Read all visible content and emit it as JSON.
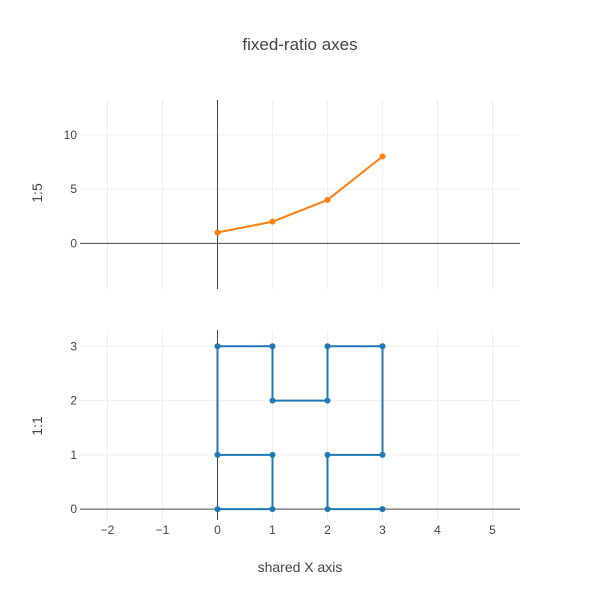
{
  "chart_data": {
    "title": "fixed-ratio axes",
    "xlabel": "shared X axis",
    "shared_x": {
      "range": [
        -2.5,
        5.5
      ],
      "ticks": [
        -2,
        -1,
        0,
        1,
        2,
        3,
        4,
        5
      ],
      "tick_labels": [
        "−2",
        "−1",
        "0",
        "1",
        "2",
        "3",
        "4",
        "5"
      ],
      "grid": true
    },
    "subplots": [
      {
        "type": "line",
        "ylabel": "1:5",
        "ylim": [
          -4.2,
          13.2
        ],
        "yticks": [
          0,
          5,
          10
        ],
        "ytick_labels": [
          "0",
          "5",
          "10"
        ],
        "grid": true,
        "series": [
          {
            "color": "#ff7f0e",
            "x": [
              0,
              1,
              2,
              3
            ],
            "y": [
              1,
              2,
              4,
              8
            ]
          }
        ]
      },
      {
        "type": "line",
        "ylabel": "1:1",
        "ylim": [
          -0.2,
          3.3
        ],
        "yticks": [
          0,
          1,
          2,
          3
        ],
        "ytick_labels": [
          "0",
          "1",
          "2",
          "3"
        ],
        "grid": true,
        "series": [
          {
            "color": "#1f77b4",
            "x": [
              0,
              1,
              1,
              0,
              0,
              1,
              1,
              2,
              2,
              3,
              3,
              2,
              2,
              3
            ],
            "y": [
              0,
              0,
              1,
              1,
              3,
              3,
              2,
              2,
              3,
              3,
              1,
              1,
              0,
              0
            ]
          }
        ]
      }
    ]
  }
}
